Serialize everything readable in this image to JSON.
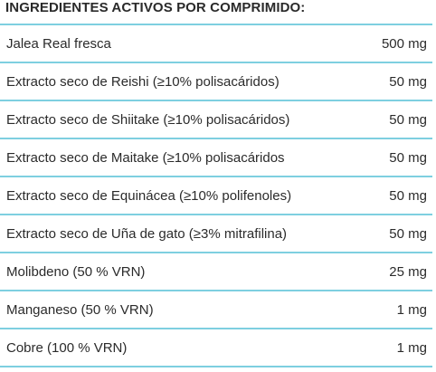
{
  "heading": "INGREDIENTES ACTIVOS POR COMPRIMIDO:",
  "rows": [
    {
      "name": "Jalea Real fresca",
      "amount": "500 mg"
    },
    {
      "name": "Extracto seco de Reishi (≥10% polisacáridos)",
      "amount": "50 mg"
    },
    {
      "name": "Extracto seco de Shiitake (≥10% polisacáridos)",
      "amount": "50 mg"
    },
    {
      "name": "Extracto seco de Maitake (≥10% polisacáridos",
      "amount": "50 mg"
    },
    {
      "name": "Extracto seco de Equinácea (≥10% polifenoles)",
      "amount": "50 mg"
    },
    {
      "name": "Extracto seco de Uña de gato (≥3% mitrafilina)",
      "amount": "50 mg"
    },
    {
      "name": "Molibdeno (50 % VRN)",
      "amount": "25 mg"
    },
    {
      "name": "Manganeso (50 % VRN)",
      "amount": "1 mg"
    },
    {
      "name": "Cobre (100 % VRN)",
      "amount": "1 mg"
    }
  ],
  "colors": {
    "divider": "#7ecfe0",
    "text": "#2b2b2b"
  }
}
